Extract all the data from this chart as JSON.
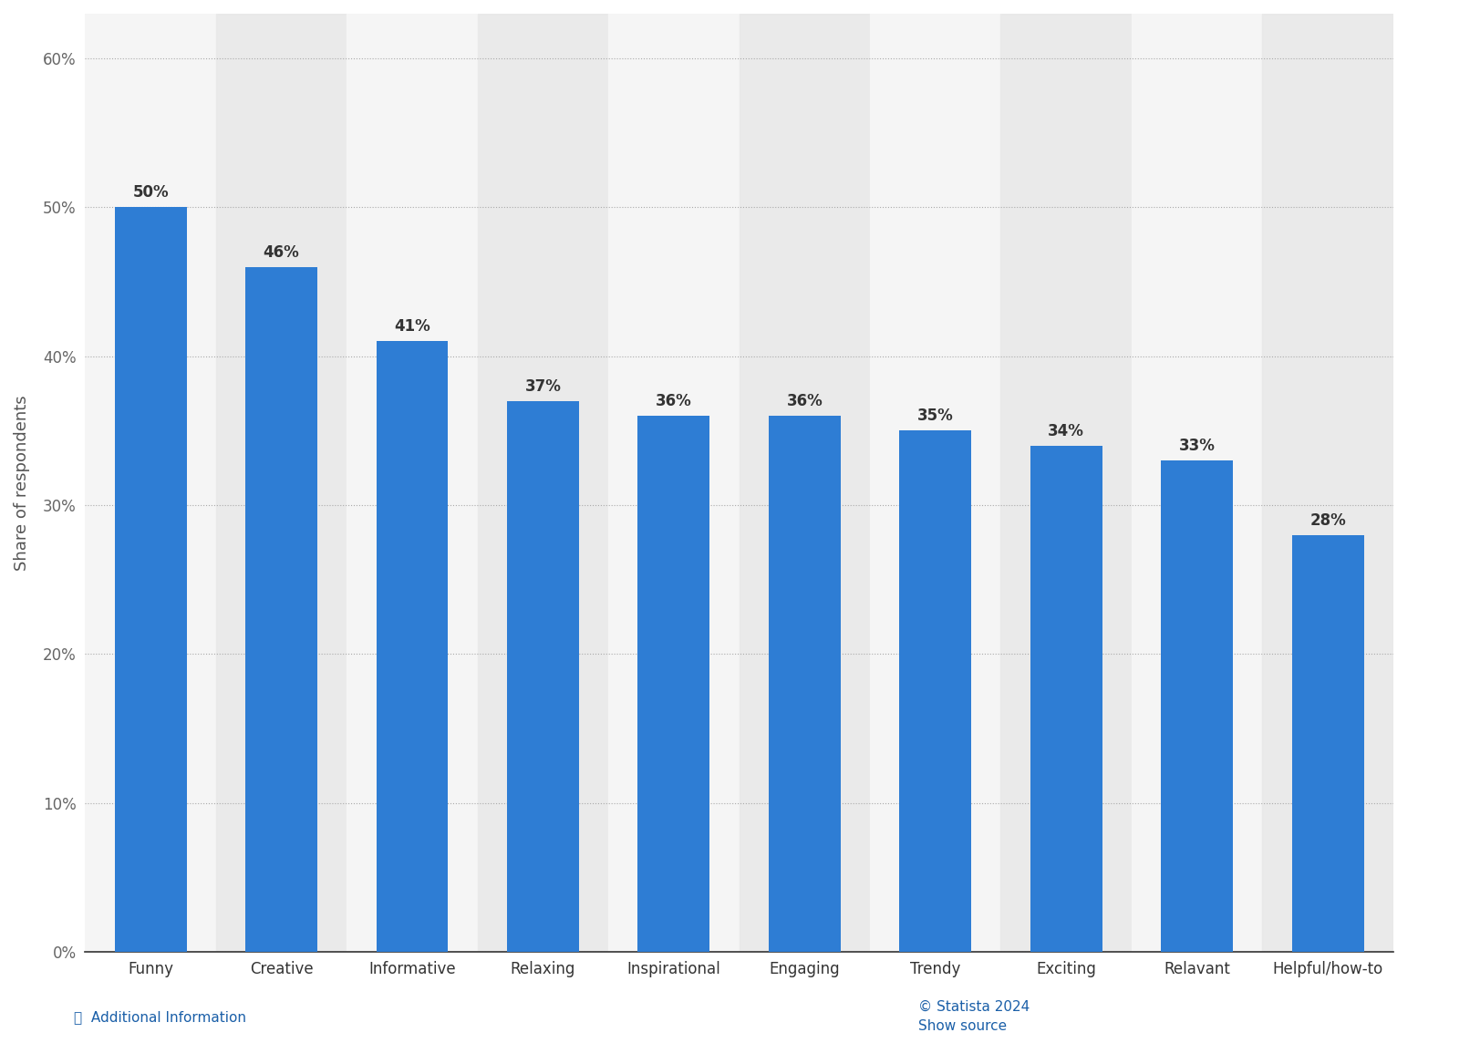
{
  "categories": [
    "Funny",
    "Creative",
    "Informative",
    "Relaxing",
    "Inspirational",
    "Engaging",
    "Trendy",
    "Exciting",
    "Relavant",
    "Helpful/how-to"
  ],
  "values": [
    50,
    46,
    41,
    37,
    36,
    36,
    35,
    34,
    33,
    28
  ],
  "bar_color": "#2e7dd4",
  "ylabel": "Share of respondents",
  "yticks": [
    0,
    10,
    20,
    30,
    40,
    50,
    60
  ],
  "ytick_labels": [
    "0%",
    "10%",
    "20%",
    "30%",
    "40%",
    "50%",
    "60%"
  ],
  "ylim": [
    0,
    63
  ],
  "background_color": "#f9f9f9",
  "plot_bg_color": "#f0f0f0",
  "label_fontsize": 12,
  "tick_fontsize": 12,
  "ylabel_fontsize": 13,
  "annotation_fontsize": 12,
  "annotation_color": "#333333",
  "footer_text": "© Statista 2024",
  "footer_color": "#1a5fa8",
  "show_source_text": "Show source",
  "show_source_color": "#1a5fa8",
  "additional_info_text": "ⓘ  Additional Information",
  "additional_info_color": "#1a5fa8"
}
